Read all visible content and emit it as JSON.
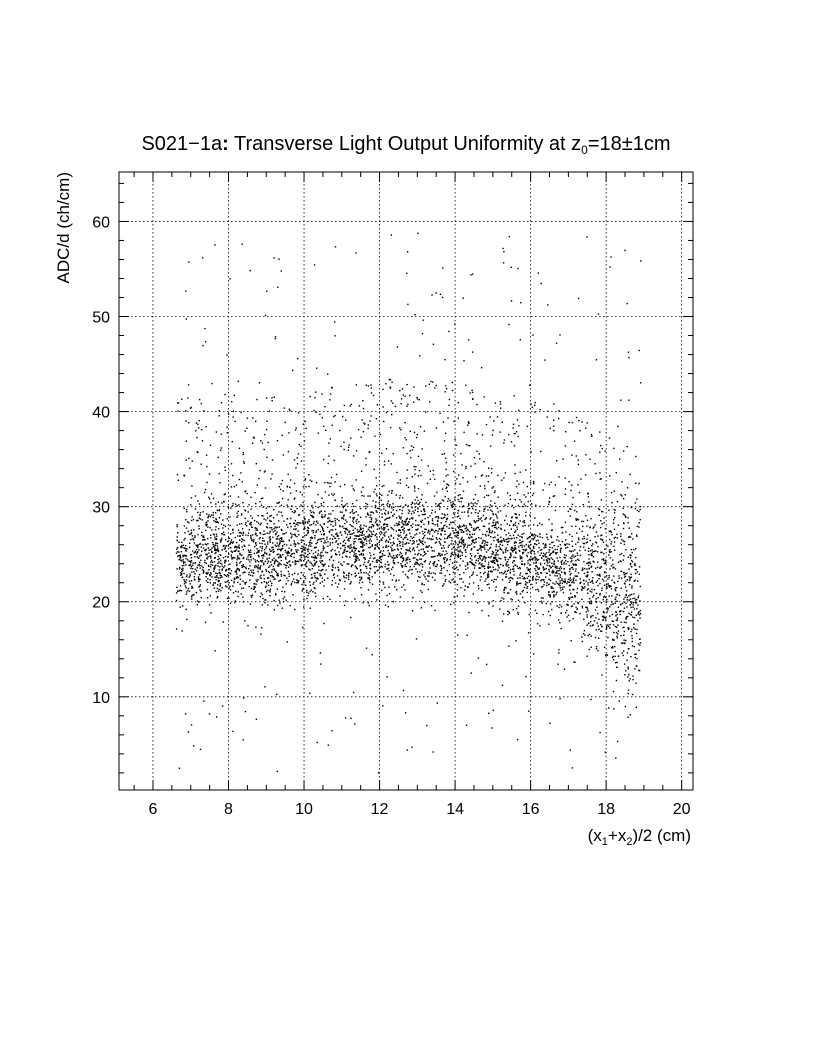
{
  "chart_data": {
    "type": "scatter",
    "title": {
      "prefix": "S021−1a",
      "colon": ":",
      "main": " Transverse Light Output Uniformity at z",
      "sub": "0",
      "suffix": "=18±1cm"
    },
    "xlabel": {
      "pre": "(x",
      "sub1": "1",
      "mid": "+x",
      "sub2": "2",
      "post": ")/2 (cm)"
    },
    "ylabel": "ADC/d (ch/cm)",
    "xlim": [
      5.1,
      20.3
    ],
    "ylim": [
      0.2,
      65.2
    ],
    "x_ticks": [
      "6",
      "8",
      "10",
      "12",
      "14",
      "16",
      "18",
      "20"
    ],
    "y_ticks": [
      "10",
      "20",
      "30",
      "40",
      "50",
      "60"
    ],
    "grid": true,
    "grid_style": "dotted",
    "point_color": "#000000",
    "n_points": 5200,
    "distribution": {
      "x_range": [
        6.6,
        18.9
      ],
      "mean_curve": [
        [
          6.6,
          24.5
        ],
        [
          8,
          25
        ],
        [
          10,
          25.5
        ],
        [
          12,
          26.5
        ],
        [
          13.5,
          26.5
        ],
        [
          15,
          25.5
        ],
        [
          16,
          24.5
        ],
        [
          17,
          23
        ],
        [
          18,
          21
        ],
        [
          18.9,
          19
        ]
      ],
      "core_sigma": 2.6,
      "halo_y_range": [
        2,
        59
      ]
    }
  }
}
